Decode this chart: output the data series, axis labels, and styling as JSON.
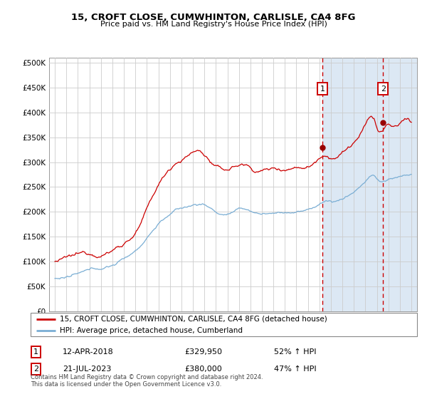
{
  "title": "15, CROFT CLOSE, CUMWHINTON, CARLISLE, CA4 8FG",
  "subtitle": "Price paid vs. HM Land Registry's House Price Index (HPI)",
  "legend_line1": "15, CROFT CLOSE, CUMWHINTON, CARLISLE, CA4 8FG (detached house)",
  "legend_line2": "HPI: Average price, detached house, Cumberland",
  "transaction1_date": "12-APR-2018",
  "transaction1_price": "£329,950",
  "transaction1_hpi": "52% ↑ HPI",
  "transaction1_year": 2018.28,
  "transaction1_value": 329950,
  "transaction2_date": "21-JUL-2023",
  "transaction2_price": "£380,000",
  "transaction2_hpi": "47% ↑ HPI",
  "transaction2_year": 2023.54,
  "transaction2_value": 380000,
  "hpi_color": "#7aaed4",
  "price_color": "#cc0000",
  "marker_color": "#990000",
  "dashed_line_color": "#cc0000",
  "shaded_region_color": "#dce8f4",
  "grid_color": "#cccccc",
  "footer_text": "Contains HM Land Registry data © Crown copyright and database right 2024.\nThis data is licensed under the Open Government Licence v3.0.",
  "ylabel_ticks": [
    "£0",
    "£50K",
    "£100K",
    "£150K",
    "£200K",
    "£250K",
    "£300K",
    "£350K",
    "£400K",
    "£450K",
    "£500K"
  ],
  "ylabel_values": [
    0,
    50000,
    100000,
    150000,
    200000,
    250000,
    300000,
    350000,
    400000,
    450000,
    500000
  ],
  "xmin": 1994.5,
  "xmax": 2026.5,
  "ymin": 0,
  "ymax": 510000
}
